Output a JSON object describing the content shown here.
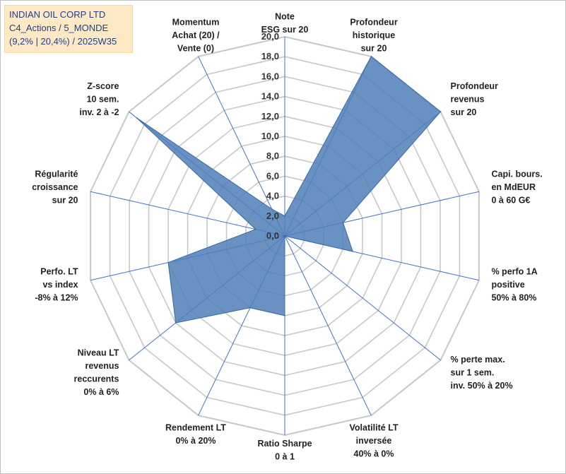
{
  "header": {
    "line1": "INDIAN OIL CORP LTD",
    "line2": "C4_Actions / 5_MONDE",
    "line3": "(9,2% | 20,4%) / 2025W35"
  },
  "chart_data": {
    "type": "radar",
    "rlim": [
      0,
      20
    ],
    "ticks": [
      "0,0",
      "2,0",
      "4,0",
      "6,0",
      "8,0",
      "10,0",
      "12,0",
      "14,0",
      "16,0",
      "18,0",
      "20,0"
    ],
    "grid": true,
    "colors": {
      "fill": "#4f7fb8",
      "stroke": "#3a6aa6",
      "grid": "#c8c8c8",
      "spoke": "#4472c4"
    },
    "axes": [
      {
        "lines": [
          "Note",
          "ESG sur 20"
        ]
      },
      {
        "lines": [
          "Profondeur",
          "historique",
          "sur 20"
        ]
      },
      {
        "lines": [
          "Profondeur",
          "revenus",
          "sur 20"
        ]
      },
      {
        "lines": [
          "Capi. bours.",
          "en MdEUR",
          "0 à 60 G€"
        ]
      },
      {
        "lines": [
          "% perfo 1A",
          "positive",
          "50% à 80%"
        ]
      },
      {
        "lines": [
          "% perte max.",
          "sur 1 sem.",
          "inv. 50% à 20%"
        ]
      },
      {
        "lines": [
          "Volatilité LT",
          "inversée",
          "40% à 0%"
        ]
      },
      {
        "lines": [
          "Ratio Sharpe",
          "0 à 1"
        ]
      },
      {
        "lines": [
          "Rendement LT",
          "0% à 20%"
        ]
      },
      {
        "lines": [
          "Niveau LT",
          "revenus",
          "reccurents",
          "0% à 6%"
        ]
      },
      {
        "lines": [
          "Perfo. LT",
          "vs index",
          "-8% à 12%"
        ]
      },
      {
        "lines": [
          "Régularité",
          "croissance",
          "sur 20"
        ]
      },
      {
        "lines": [
          "Z-score",
          "10 sem.",
          "inv. 2 à -2"
        ]
      },
      {
        "lines": [
          "Momentum",
          "Achat (20) /",
          "Vente (0)"
        ]
      }
    ],
    "series": [
      {
        "values": [
          2,
          20,
          20,
          6,
          7,
          0,
          0,
          8,
          8,
          14,
          12,
          3,
          19,
          3
        ]
      }
    ]
  }
}
